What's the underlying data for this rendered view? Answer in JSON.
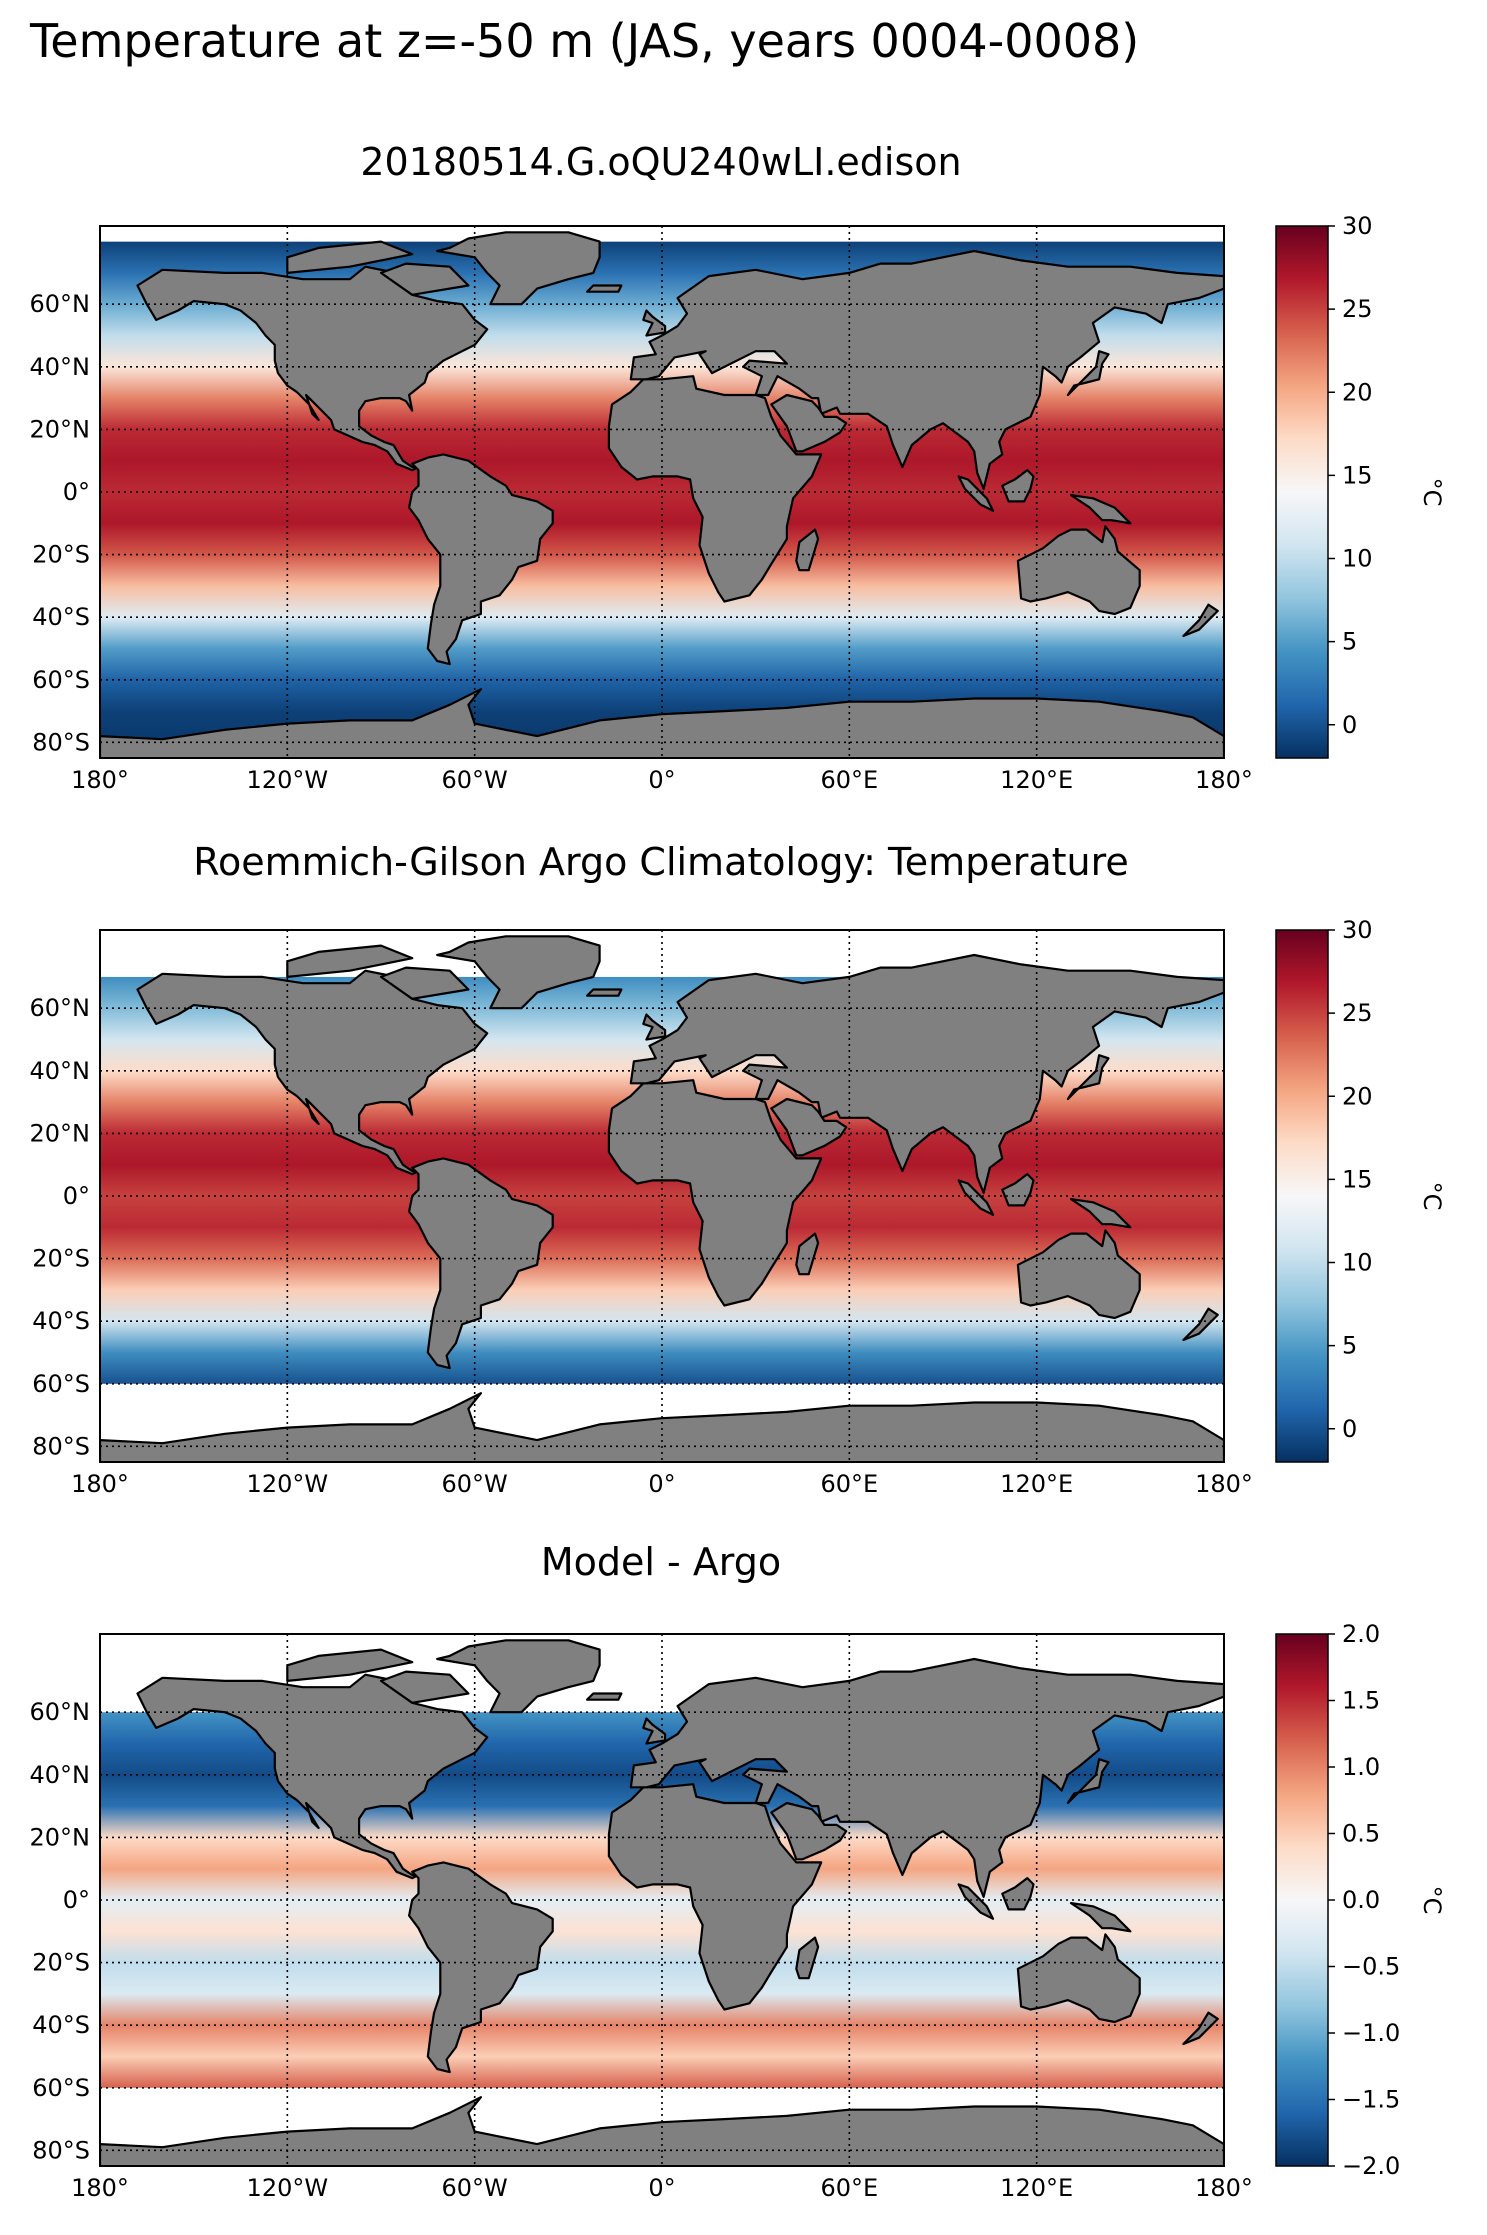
{
  "figure": {
    "suptitle": "Temperature at z=-50 m (JAS, years 0004-0008)",
    "land_color": "#808080",
    "ocean_missing_color": "#ffffff"
  },
  "axes": {
    "lon_ticks": [
      "180°",
      "120°W",
      "60°W",
      "0°",
      "60°E",
      "120°E",
      "180°"
    ],
    "lat_ticks": [
      "60°N",
      "40°N",
      "20°N",
      "0°",
      "20°S",
      "40°S",
      "60°S",
      "80°S"
    ]
  },
  "panels": [
    {
      "title": "20180514.G.oQU240wLI.edison",
      "colorbar": {
        "label": "°C",
        "cmap": "RdBu_r",
        "vmin": -2,
        "vmax": 30,
        "ticks": [
          "30",
          "25",
          "20",
          "15",
          "10",
          "5",
          "0"
        ],
        "tick_values": [
          30,
          25,
          20,
          15,
          10,
          5,
          0
        ]
      }
    },
    {
      "title": "Roemmich-Gilson Argo Climatology: Temperature",
      "colorbar": {
        "label": "°C",
        "cmap": "RdBu_r",
        "vmin": -2,
        "vmax": 30,
        "ticks": [
          "30",
          "25",
          "20",
          "15",
          "10",
          "5",
          "0"
        ],
        "tick_values": [
          30,
          25,
          20,
          15,
          10,
          5,
          0
        ]
      }
    },
    {
      "title": "Model - Argo",
      "colorbar": {
        "label": "°C",
        "cmap": "RdBu_r",
        "vmin": -2,
        "vmax": 2,
        "ticks": [
          "2.0",
          "1.5",
          "1.0",
          "0.5",
          "0.0",
          "−0.5",
          "−1.0",
          "−1.5",
          "−2.0"
        ],
        "tick_values": [
          2,
          1.5,
          1,
          0.5,
          0,
          -0.5,
          -1,
          -1.5,
          -2
        ]
      }
    }
  ],
  "chart_data": [
    {
      "type": "heatmap",
      "title": "20180514.G.oQU240wLI.edison",
      "colorbar_label": "°C",
      "color_range": [
        -2,
        30
      ],
      "xlim": [
        -180,
        180
      ],
      "ylim": [
        -85,
        85
      ],
      "zonal_profile": {
        "lat": [
          -80,
          -70,
          -60,
          -50,
          -40,
          -30,
          -20,
          -10,
          0,
          10,
          20,
          30,
          40,
          50,
          60,
          70,
          80
        ],
        "value": [
          -1.5,
          -1,
          1,
          5,
          12,
          19,
          24,
          27,
          26,
          27,
          26,
          22,
          16,
          10,
          6,
          2,
          -1
        ]
      }
    },
    {
      "type": "heatmap",
      "title": "Roemmich-Gilson Argo Climatology: Temperature",
      "colorbar_label": "°C",
      "color_range": [
        -2,
        30
      ],
      "xlim": [
        -180,
        180
      ],
      "ylim": [
        -85,
        85
      ],
      "zonal_profile": {
        "lat": [
          -60,
          -50,
          -40,
          -30,
          -20,
          -10,
          0,
          10,
          20,
          30,
          40,
          50,
          60,
          70
        ],
        "value": [
          0,
          4,
          11,
          18,
          23,
          26,
          25,
          27,
          26,
          22,
          17,
          11,
          7,
          4
        ]
      }
    },
    {
      "type": "heatmap",
      "title": "Model - Argo",
      "colorbar_label": "°C",
      "color_range": [
        -2,
        2
      ],
      "xlim": [
        -180,
        180
      ],
      "ylim": [
        -85,
        85
      ],
      "zonal_profile": {
        "lat": [
          -60,
          -50,
          -40,
          -30,
          -20,
          -10,
          0,
          10,
          20,
          30,
          40,
          50,
          60
        ],
        "value": [
          1.2,
          0.5,
          1.0,
          -0.3,
          -0.5,
          0.3,
          -0.2,
          0.8,
          0.4,
          -1.5,
          -1.8,
          -1.6,
          -1.2
        ]
      }
    }
  ]
}
